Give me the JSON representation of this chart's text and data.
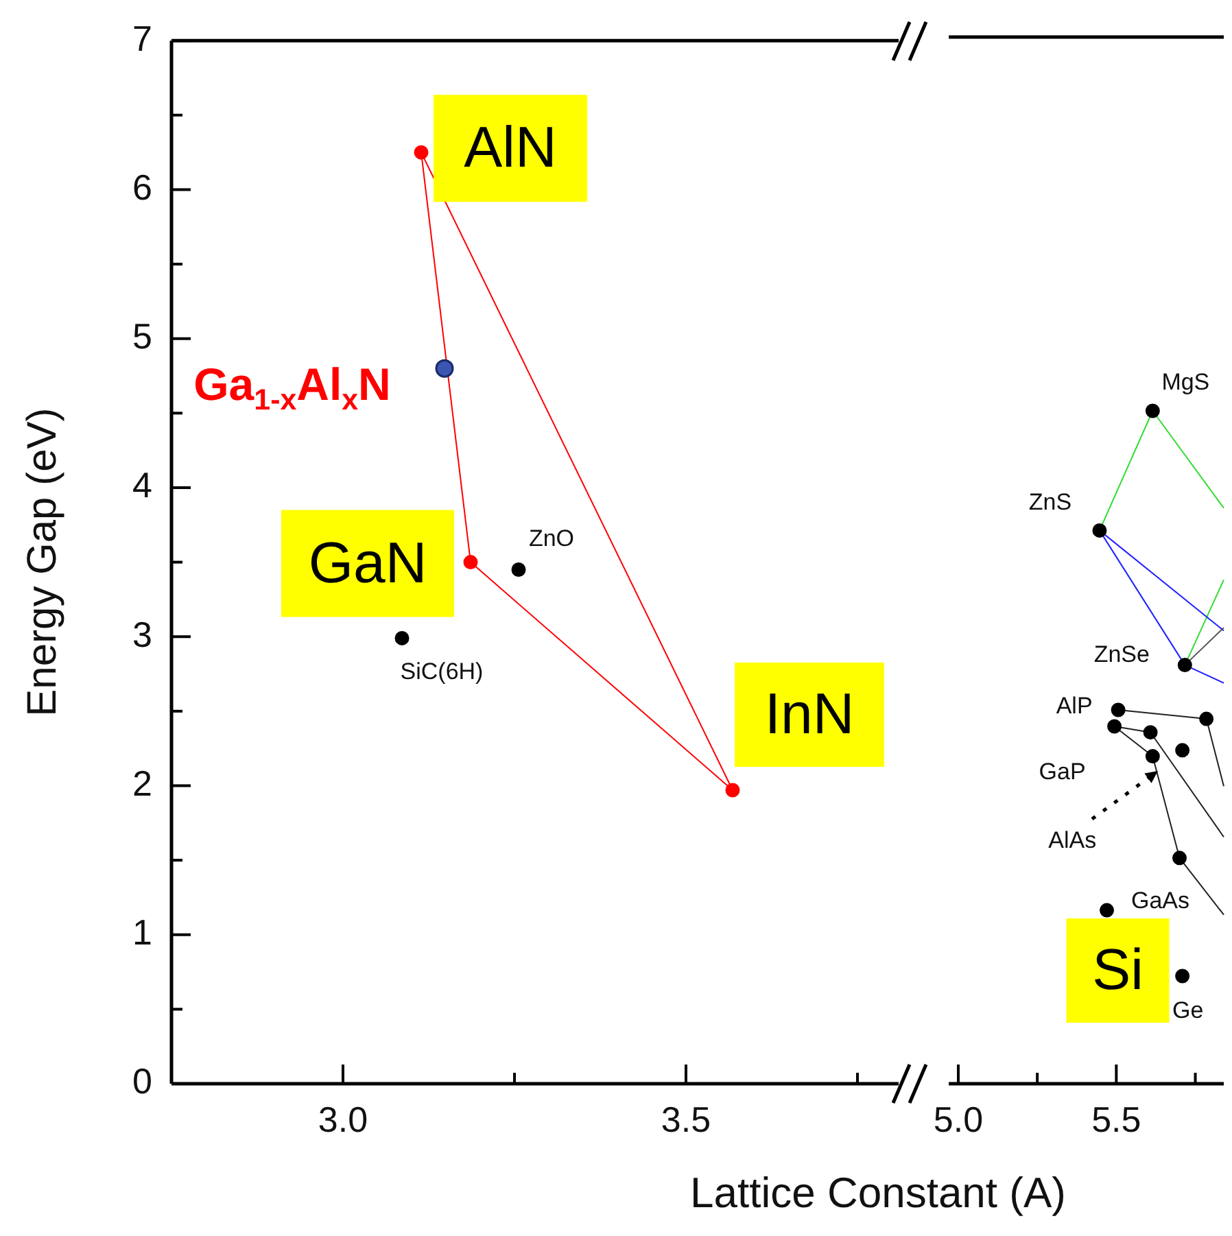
{
  "chart_data": [
    {
      "type": "scatter",
      "xlabel": "Lattice Constant (A)",
      "ylabel": "Energy Gap (eV)",
      "xlim": [
        2.75,
        3.81
      ],
      "xticks": [
        {
          "value": 3,
          "label": "3.0"
        },
        {
          "value": 3.25,
          "label": null
        },
        {
          "value": 3.5,
          "label": "3.5"
        },
        {
          "value": 3.75,
          "label": null
        }
      ],
      "ylim": [
        0,
        7
      ],
      "yticks": [
        0,
        {
          "value": 0.5,
          "label": null
        },
        1,
        {
          "value": 1.5,
          "label": null
        },
        2,
        {
          "value": 2.5,
          "label": null
        },
        3,
        {
          "value": 3.5,
          "label": null
        },
        4,
        {
          "value": 4.5,
          "label": null
        },
        5,
        {
          "value": 5.5,
          "label": null
        },
        6,
        {
          "value": 6.5,
          "label": null
        },
        7
      ],
      "marker": "circle",
      "series": [
        {
          "type": "line",
          "color": "#ff0000",
          "marker": "none",
          "x": [
            3.114,
            3.186,
            3.568
          ],
          "values": [
            6.25,
            3.5,
            1.97
          ]
        },
        {
          "type": "line",
          "color": "#ff0000",
          "marker": "none",
          "x": [
            3.114,
            3.568
          ],
          "values": [
            6.25,
            1.97
          ]
        },
        {
          "color": "#ff0000",
          "x": [
            3.114,
            3.186,
            3.568
          ],
          "values": [
            6.25,
            3.5,
            1.97
          ]
        },
        {
          "color": "#3b55b0",
          "x": [
            3.148
          ],
          "values": [
            4.8
          ]
        },
        {
          "color": "#000000",
          "x": [
            3.256,
            3.086
          ],
          "values": [
            3.45,
            2.99
          ]
        }
      ],
      "annotations": [
        {
          "text": "AlN",
          "x": 3.114,
          "y": 6.25
        },
        {
          "text": "Ga$_{1-x}$Al$_{x}$N",
          "x": 3.148,
          "y": 4.8
        },
        {
          "text": "GaN",
          "x": 3.186,
          "y": 3.5
        },
        {
          "text": "ZnO",
          "x": 3.256,
          "y": 3.45
        },
        {
          "text": "SiC(6H)",
          "x": 3.086,
          "y": 2.99
        },
        {
          "text": "InN",
          "x": 3.568,
          "y": 1.97
        }
      ]
    },
    {
      "type": "scatter",
      "xlim": [
        4.97,
        5.84
      ],
      "xticks": [
        {
          "value": 5,
          "label": "5.0"
        },
        {
          "value": 5.25,
          "label": null
        },
        {
          "value": 5.5,
          "label": "5.5"
        },
        {
          "value": 5.75,
          "label": null
        }
      ],
      "ylim": [
        0,
        7
      ],
      "tick_labels": "x",
      "marker": "circle",
      "series": [
        {
          "type": "line",
          "color": "#33dd33",
          "marker": "none",
          "x": [
            5.447,
            5.615,
            5.84
          ],
          "values": [
            3.7,
            4.5,
            3.85
          ]
        },
        {
          "type": "line",
          "color": "#33dd33",
          "marker": "none",
          "x": [
            5.717,
            5.84
          ],
          "values": [
            2.8,
            3.37
          ]
        },
        {
          "type": "line",
          "color": "#2222ff",
          "marker": "none",
          "x": [
            5.447,
            5.717,
            5.84
          ],
          "values": [
            3.7,
            2.8,
            2.68
          ]
        },
        {
          "type": "line",
          "color": "#2222ff",
          "marker": "none",
          "x": [
            5.447,
            5.84
          ],
          "values": [
            3.7,
            3.03
          ]
        },
        {
          "type": "line",
          "color": "#555555",
          "marker": "none",
          "x": [
            5.717,
            5.84
          ],
          "values": [
            2.8,
            3.05
          ]
        },
        {
          "type": "line",
          "color": "#222222",
          "marker": "none",
          "x": [
            5.506,
            5.785,
            5.84
          ],
          "values": [
            2.5,
            2.44,
            1.99
          ]
        },
        {
          "type": "line",
          "color": "#222222",
          "marker": "none",
          "x": [
            5.494,
            5.608,
            5.84
          ],
          "values": [
            2.39,
            2.35,
            1.65
          ]
        },
        {
          "type": "line",
          "color": "#222222",
          "marker": "none",
          "x": [
            5.494,
            5.615,
            5.7,
            5.84
          ],
          "values": [
            2.39,
            2.19,
            1.51,
            1.13
          ]
        },
        {
          "color": "#000000",
          "x": [
            5.615,
            5.447,
            5.717,
            5.506,
            5.785,
            5.494,
            5.608,
            5.709,
            5.615,
            5.7,
            5.47,
            5.709
          ],
          "values": [
            4.5,
            3.7,
            2.8,
            2.5,
            2.44,
            2.39,
            2.35,
            2.23,
            2.19,
            1.51,
            1.16,
            0.72
          ]
        }
      ],
      "annotations": [
        {
          "text": "MgS",
          "x": 5.615,
          "y": 4.5
        },
        {
          "text": "ZnS",
          "x": 5.447,
          "y": 3.7
        },
        {
          "text": "ZnSe",
          "x": 5.717,
          "y": 2.8
        },
        {
          "text": "AlP",
          "x": 5.506,
          "y": 2.5
        },
        {
          "text": "GaP",
          "x": 5.494,
          "y": 2.39
        },
        {
          "text": "AlAs",
          "x": 5.63,
          "y": 2.09
        },
        {
          "text": "GaAs",
          "x": 5.7,
          "y": 1.51
        },
        {
          "text": "Si",
          "x": 5.47,
          "y": 1.16
        },
        {
          "text": "Ge",
          "x": 5.709,
          "y": 0.72
        }
      ]
    }
  ]
}
